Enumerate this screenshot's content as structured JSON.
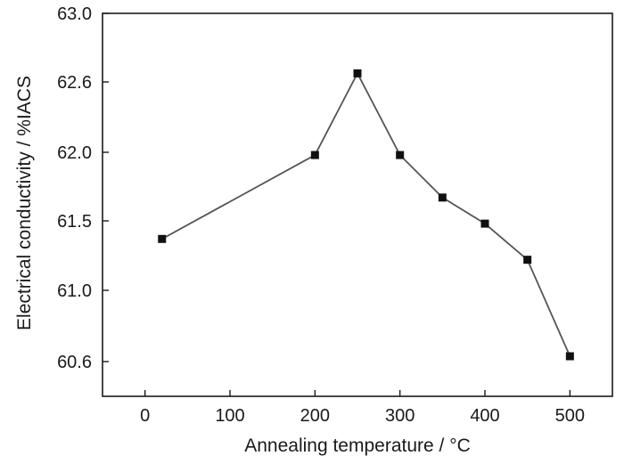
{
  "chart_data": {
    "type": "line",
    "title": "",
    "xlabel": "Annealing temperature / °C",
    "ylabel": "Electrical conductivity / %IACS",
    "xlim": [
      -50,
      550
    ],
    "ylim": [
      60.4,
      63.0
    ],
    "xticks": [
      0,
      100,
      200,
      300,
      400,
      500
    ],
    "yticks": [
      60.6,
      61.0,
      61.5,
      62.0,
      62.6,
      63.0
    ],
    "ytick_labels": [
      "60.6",
      "61.0",
      "61.5",
      "62.0",
      "62.6",
      "63.0"
    ],
    "grid": false,
    "marker": "square",
    "series": [
      {
        "x": [
          20,
          200,
          250,
          300,
          350,
          400,
          450,
          500
        ],
        "y": [
          61.37,
          61.98,
          62.65,
          61.98,
          61.67,
          61.48,
          61.22,
          60.63
        ]
      }
    ],
    "colors": {
      "line": "#555555",
      "marker": "#111111",
      "axis": "#1a1a1a"
    }
  }
}
